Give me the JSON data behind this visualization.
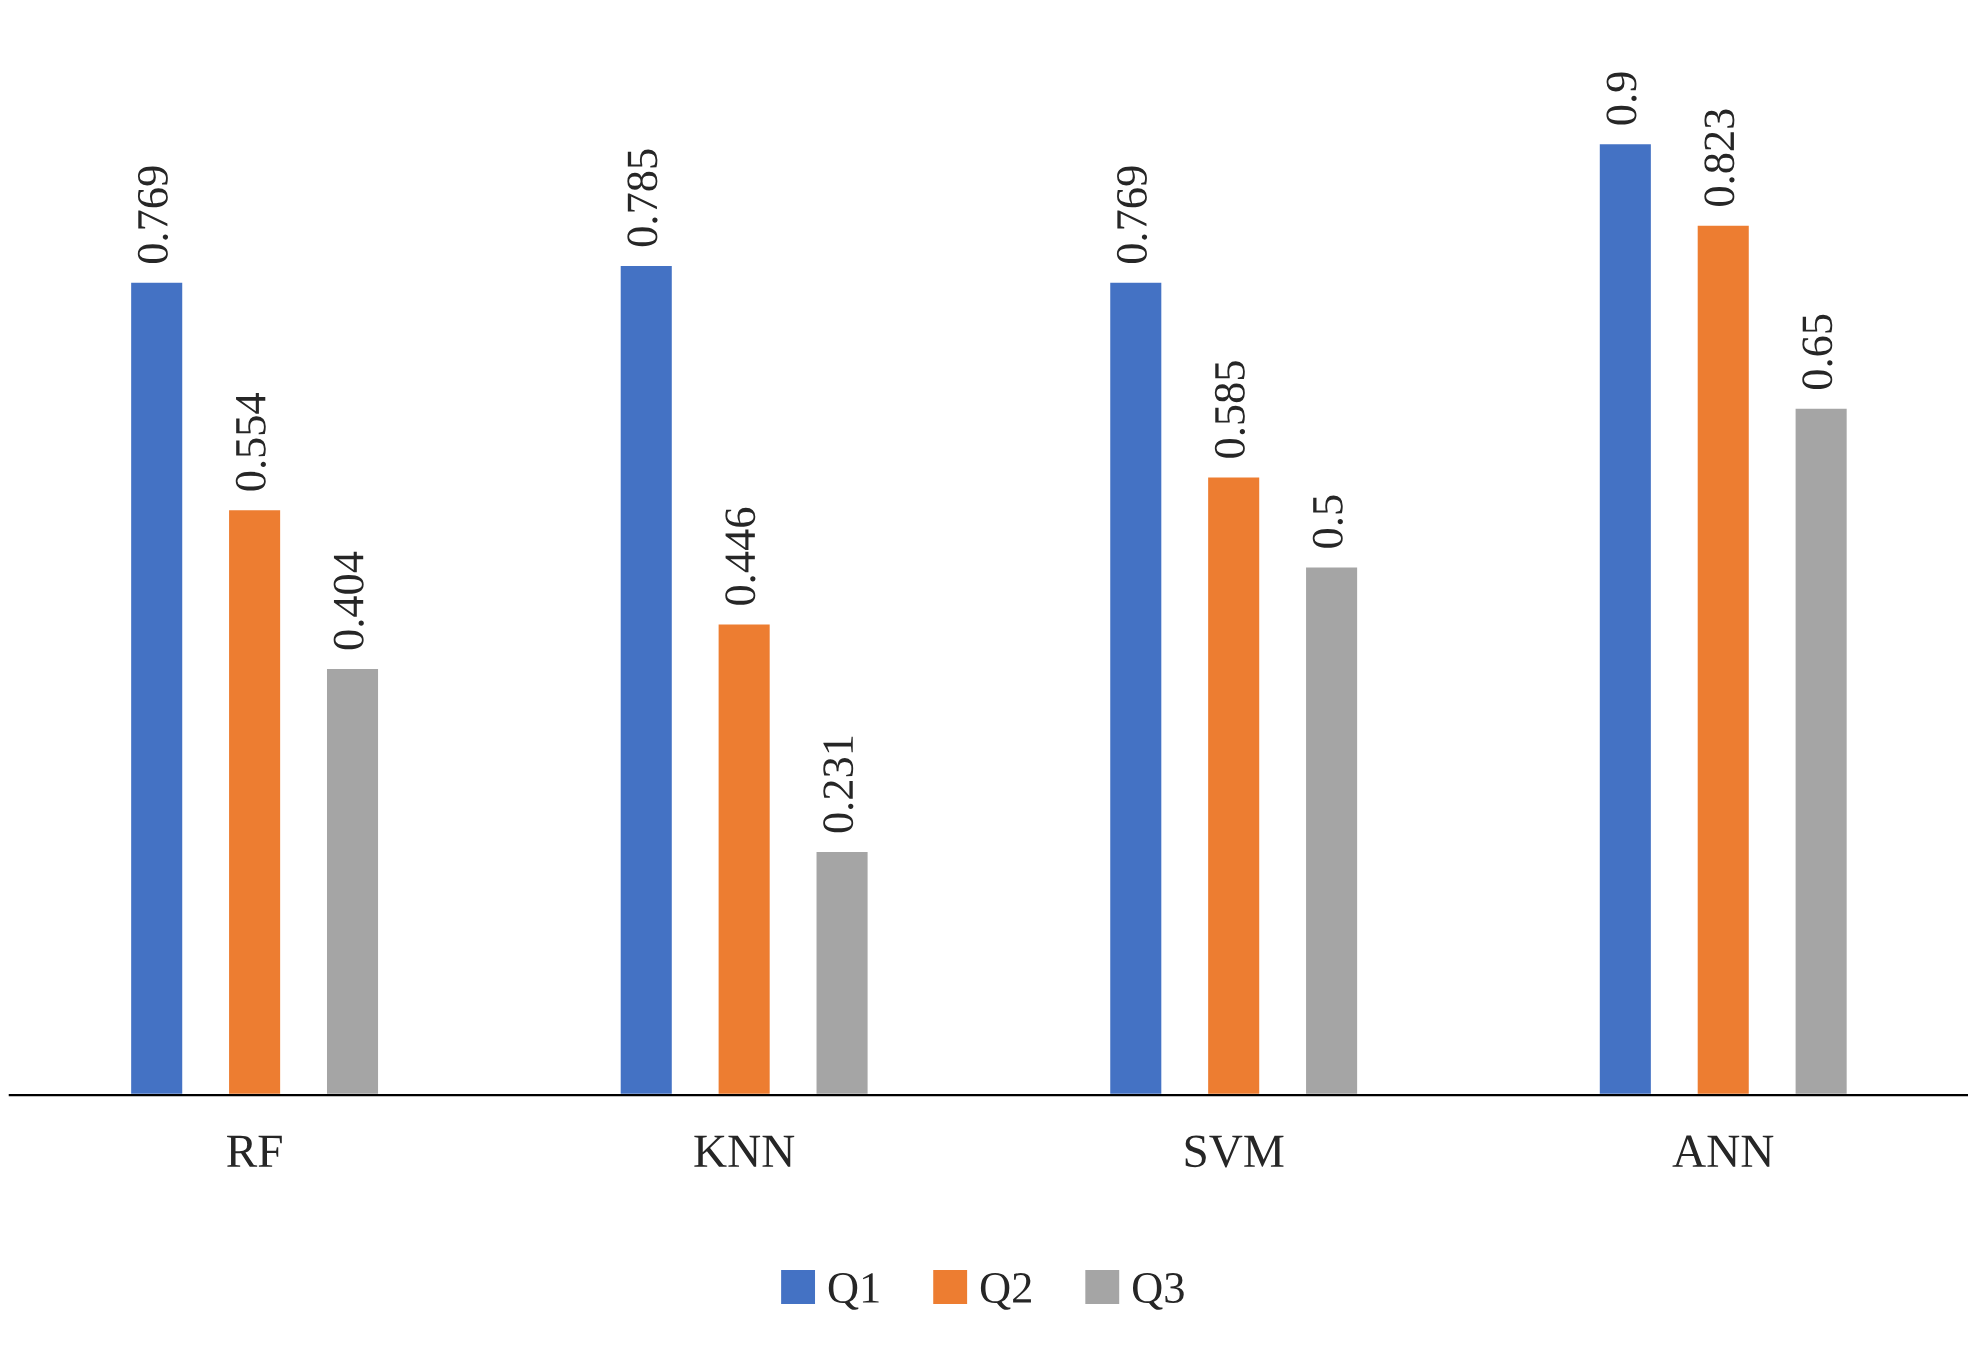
{
  "chart_data": {
    "type": "bar",
    "categories": [
      "RF",
      "KNN",
      "SVM",
      "ANN"
    ],
    "series": [
      {
        "name": "Q1",
        "color": "#4472c4",
        "values": [
          0.769,
          0.785,
          0.769,
          0.9
        ]
      },
      {
        "name": "Q2",
        "color": "#ed7d31",
        "values": [
          0.554,
          0.446,
          0.585,
          0.823
        ]
      },
      {
        "name": "Q3",
        "color": "#a5a5a5",
        "values": [
          0.404,
          0.231,
          0.5,
          0.65
        ]
      }
    ],
    "data_labels": true,
    "legend": "bottom",
    "grid": false
  }
}
